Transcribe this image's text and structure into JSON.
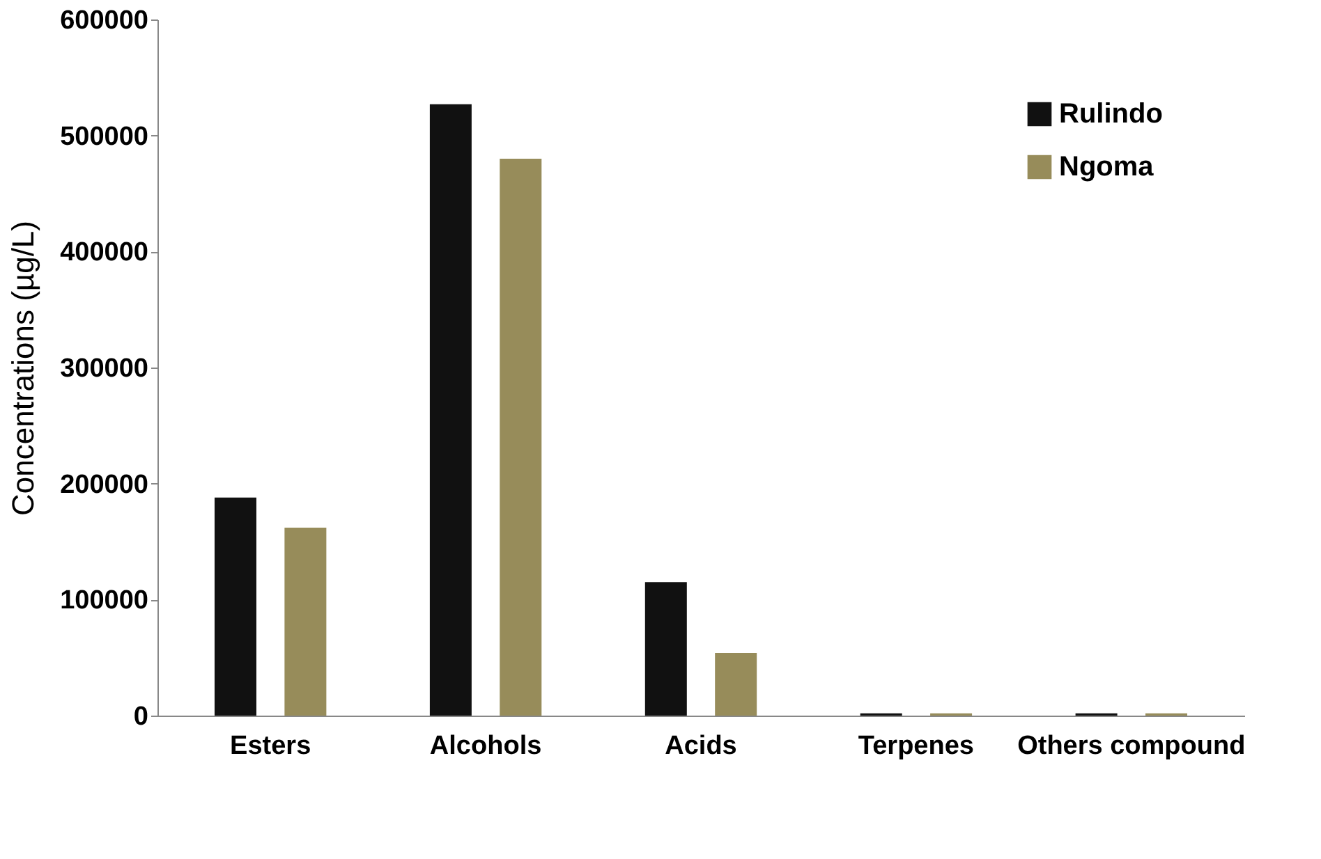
{
  "chart_data": {
    "type": "bar",
    "ylabel": "Concentrations (µg/L)",
    "categories": [
      "Esters",
      "Alcohols",
      "Acids",
      "Terpenes",
      "Others compound"
    ],
    "series": [
      {
        "name": "Rulindo",
        "color": "#111111",
        "values": [
          188000,
          527000,
          115000,
          2000,
          2000
        ]
      },
      {
        "name": "Ngoma",
        "color": "#978c5a",
        "values": [
          162000,
          480000,
          54000,
          2000,
          2000
        ]
      }
    ],
    "ylim": [
      0,
      600000
    ],
    "yticks": [
      0,
      100000,
      200000,
      300000,
      400000,
      500000,
      600000
    ],
    "grid": false,
    "legend": "top right"
  }
}
